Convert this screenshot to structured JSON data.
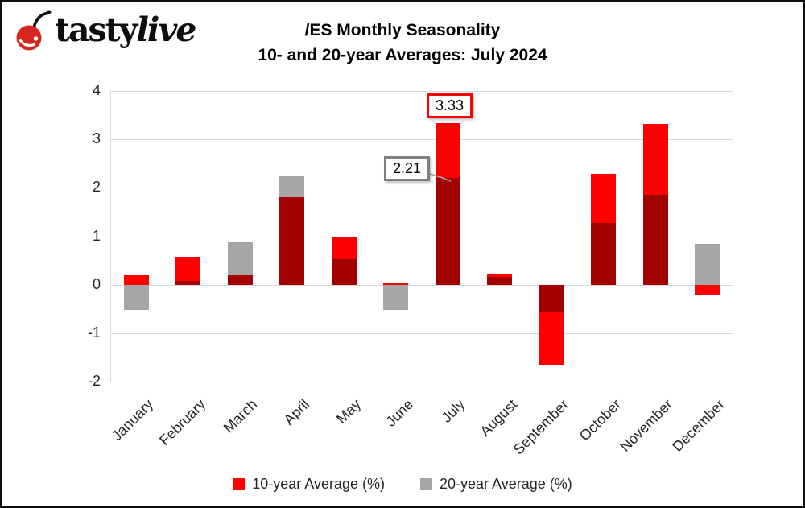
{
  "header": {
    "brand_tasty": "tasty",
    "brand_live": "live",
    "title_line1": "/ES Monthly Seasonality",
    "title_line2": "10- and 20-year Averages: July 2024"
  },
  "chart_data": {
    "type": "bar",
    "title": "/ES Monthly Seasonality",
    "subtitle": "10- and 20-year Averages: July 2024",
    "categories": [
      "January",
      "February",
      "March",
      "April",
      "May",
      "June",
      "July",
      "August",
      "September",
      "October",
      "November",
      "December"
    ],
    "series": [
      {
        "name": "10-year Average (%)",
        "color": "#fe0000",
        "values": [
          0.2,
          0.57,
          0.2,
          1.8,
          1.0,
          0.05,
          3.33,
          0.22,
          -1.65,
          2.28,
          3.32,
          -0.2
        ]
      },
      {
        "name": "20-year Average (%)",
        "color": "#a6a6a6",
        "values": [
          -0.52,
          0.08,
          0.9,
          2.26,
          0.53,
          -0.52,
          2.21,
          0.16,
          -0.57,
          1.27,
          1.85,
          0.85
        ]
      }
    ],
    "overlap_color": "#a30000",
    "bar_style": "overlapping",
    "y_ticks": [
      "4",
      "3",
      "2",
      "1",
      "0",
      "-1",
      "-2"
    ],
    "ylim": [
      -2,
      4
    ],
    "grid": true,
    "gridline_color": "#d9d9d9",
    "legend_position": "bottom",
    "annotations": [
      {
        "text": "3.33",
        "month": "July",
        "series": "10-year Average (%)",
        "border_color": "#fe0000"
      },
      {
        "text": "2.21",
        "month": "July",
        "series": "20-year Average (%)",
        "border_color": "#7f7f7f"
      }
    ]
  }
}
